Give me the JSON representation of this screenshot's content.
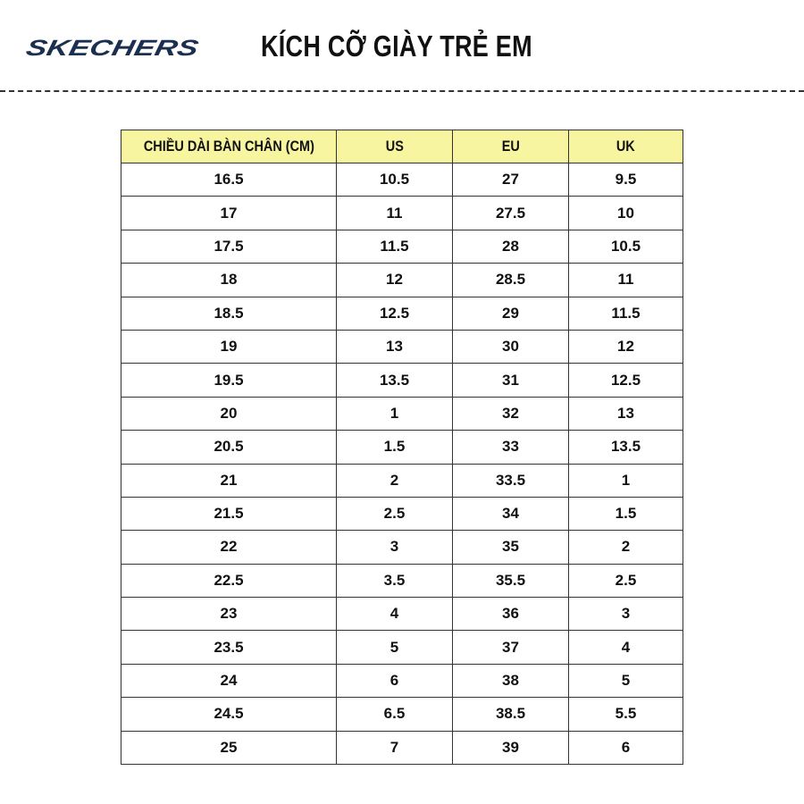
{
  "logo": {
    "text": "SKECHERS",
    "color": "#1b2f4f"
  },
  "title": "KÍCH CỠ GIÀY TRẺ EM",
  "colors": {
    "header_bg": "#f7f5a0",
    "border": "#333333"
  },
  "table": {
    "headers": [
      "CHIỀU DÀI BÀN CHÂN (CM)",
      "US",
      "EU",
      "UK"
    ],
    "rows": [
      [
        "16.5",
        "10.5",
        "27",
        "9.5"
      ],
      [
        "17",
        "11",
        "27.5",
        "10"
      ],
      [
        "17.5",
        "11.5",
        "28",
        "10.5"
      ],
      [
        "18",
        "12",
        "28.5",
        "11"
      ],
      [
        "18.5",
        "12.5",
        "29",
        "11.5"
      ],
      [
        "19",
        "13",
        "30",
        "12"
      ],
      [
        "19.5",
        "13.5",
        "31",
        "12.5"
      ],
      [
        "20",
        "1",
        "32",
        "13"
      ],
      [
        "20.5",
        "1.5",
        "33",
        "13.5"
      ],
      [
        "21",
        "2",
        "33.5",
        "1"
      ],
      [
        "21.5",
        "2.5",
        "34",
        "1.5"
      ],
      [
        "22",
        "3",
        "35",
        "2"
      ],
      [
        "22.5",
        "3.5",
        "35.5",
        "2.5"
      ],
      [
        "23",
        "4",
        "36",
        "3"
      ],
      [
        "23.5",
        "5",
        "37",
        "4"
      ],
      [
        "24",
        "6",
        "38",
        "5"
      ],
      [
        "24.5",
        "6.5",
        "38.5",
        "5.5"
      ],
      [
        "25",
        "7",
        "39",
        "6"
      ]
    ]
  }
}
